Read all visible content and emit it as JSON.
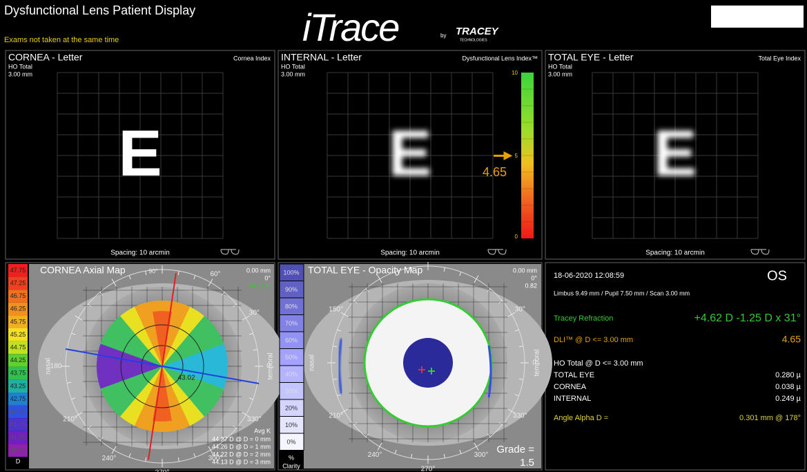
{
  "header": {
    "title": "Dysfunctional Lens Patient Display",
    "warning": "Exams not taken at the same time",
    "logo": "iTrace",
    "logo_by": "by",
    "logo_brand": "TRACEY",
    "logo_sub": "TECHNOLOGIES"
  },
  "letter_panels": [
    {
      "title": "CORNEA - Letter",
      "measure": "HO Total",
      "diameter": "3.00 mm",
      "index": "Cornea Index",
      "letter": "E",
      "spacing": "Spacing:  10 arcmin"
    },
    {
      "title": "INTERNAL - Letter",
      "measure": "HO Total",
      "diameter": "3.00 mm",
      "index": "Dysfunctional Lens Index™",
      "letter": "E",
      "spacing": "Spacing:  10 arcmin"
    },
    {
      "title": "TOTAL EYE - Letter",
      "measure": "HO Total",
      "diameter": "3.00 mm",
      "index": "Total Eye Index",
      "letter": "E",
      "spacing": "Spacing:  10 arcmin"
    }
  ],
  "dli_scale": {
    "max": "10",
    "mid": "5",
    "min": "0",
    "value": "4.65"
  },
  "axial_map": {
    "title": "CORNEA  Axial Map",
    "legend": [
      "47.75",
      "47.25",
      "46.75",
      "46.25",
      "45.75",
      "45.25",
      "44.75",
      "44.25",
      "43.75",
      "43.25",
      "42.75",
      "42.25",
      "41.75",
      "41.25",
      "40.75"
    ],
    "unit": "D",
    "top_angle": "90°",
    "offset": "0.00 mm",
    "rotation": "0°",
    "k_value": "44.27 D",
    "nasal": "nasal",
    "temporal": "temporal",
    "angles": [
      "60°",
      "30°",
      "0",
      "330°",
      "300°",
      "270°",
      "240°",
      "210°",
      "180"
    ],
    "map_value": "43.02",
    "avg_label": "Avg K",
    "avg_rows": [
      "44.27 D @ D = 0 mm",
      "44.26 D @ D = 1 mm",
      "44.22 D @ D = 2 mm",
      "44.13 D @ D = 3 mm"
    ]
  },
  "opacity_map": {
    "title": "TOTAL EYE - Opacity Map",
    "legend": [
      "100%",
      "90%",
      "80%",
      "70%",
      "60%",
      "50%",
      "40%",
      "30%",
      "20%",
      "10%",
      "0%"
    ],
    "legend_unit": "%",
    "legend_name": "Clarity",
    "offset": "0.00 mm",
    "rotation": "0°",
    "ratio": "0.82",
    "nasal": "nasal",
    "temporal": "temporal",
    "angles": [
      "30°",
      "0",
      "330°",
      "300°",
      "270°",
      "240°",
      "210°",
      "150°"
    ],
    "grade_label": "Grade =",
    "grade": "1.5"
  },
  "summary": {
    "date": "18-06-2020  12:08:59",
    "eye": "OS",
    "scan": "Limbus 9.49 mm  /  Pupil 7.50 mm  /  Scan 3.00 mm",
    "refraction_label": "Tracey Refraction",
    "refraction": "+4.62 D -1.25 D x 31°",
    "dli_label": "DLI™ @ D <= 3.00 mm",
    "dli": "4.65",
    "ho_label": "HO Total @ D <= 3.00 mm",
    "rows": [
      {
        "label": "TOTAL EYE",
        "value": "0.280 µ"
      },
      {
        "label": "CORNEA",
        "value": "0.038 µ"
      },
      {
        "label": "INTERNAL",
        "value": "0.249 µ"
      }
    ],
    "alpha_label": "Angle Alpha  D =",
    "alpha": "0.301 mm @ 178°"
  }
}
